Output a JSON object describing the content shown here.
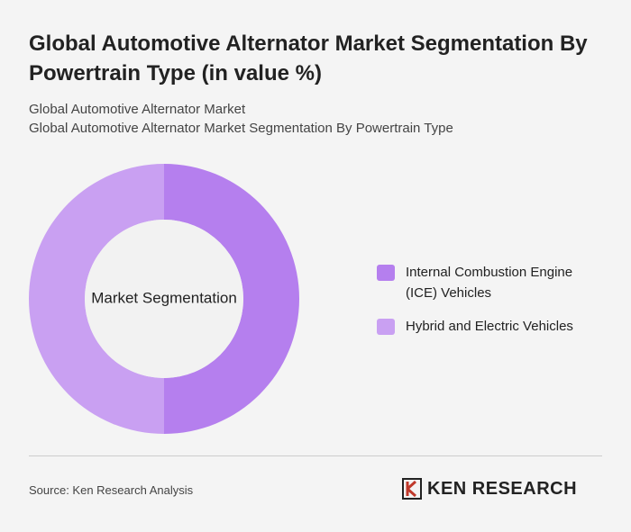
{
  "chart_data": {
    "type": "donut",
    "title": "Global Automotive Alternator Market Segmentation By Powertrain Type (in value %)",
    "subtitles": [
      "Global Automotive Alternator Market",
      "Global Automotive Alternator Market Segmentation By Powertrain Type"
    ],
    "center_label": "Market Segmentation",
    "categories": [
      "Internal Combustion Engine (ICE) Vehicles",
      "Hybrid and Electric Vehicles"
    ],
    "values": [
      50,
      50
    ],
    "colors": [
      "#b57fee",
      "#c9a0f2"
    ]
  },
  "source": "Source: Ken Research Analysis",
  "logo_text": "KEN RESEARCH"
}
